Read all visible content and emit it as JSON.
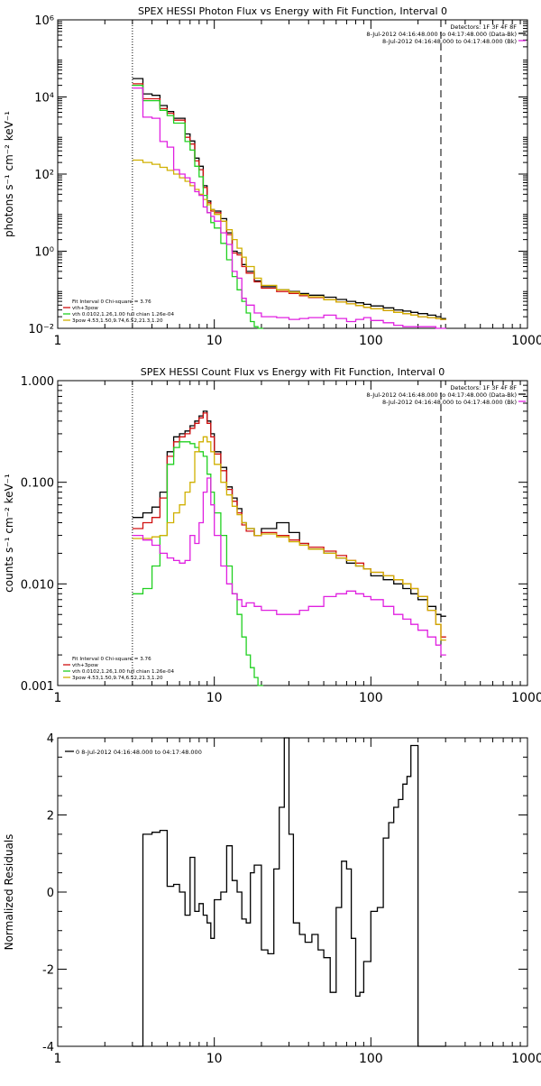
{
  "colors": {
    "data": "#000000",
    "total": "#d01010",
    "thermal": "#20d020",
    "powerlaw": "#d0b000",
    "background": "#e020e0",
    "fitrange": "#ff8c00"
  },
  "chart_data": [
    {
      "type": "line",
      "title": "SPEX HESSI Photon Flux vs Energy with Fit Function, Interval 0",
      "xlabel": "",
      "ylabel": "photons s⁻¹ cm⁻² keV⁻¹",
      "xscale": "log",
      "yscale": "log",
      "xlim": [
        1,
        1000
      ],
      "ylim": [
        0.01,
        1000000
      ],
      "xticks": [
        1,
        10,
        100,
        1000
      ],
      "xtick_labels": [
        "1",
        "10",
        "100",
        "1000"
      ],
      "yticks": [
        0.01,
        1,
        100,
        10000,
        1000000
      ],
      "ytick_labels": [
        "10⁻²",
        "10⁰",
        "10²",
        "10⁴",
        "10⁶"
      ],
      "legend_top": [
        "Detectors: 1F 3F 4F 8F",
        "8-Jul-2012 04:16:48.000 to 04:17:48.000 (Data-Bk)",
        "8-Jul-2012 04:16:48.000 to 04:17:48.000 (Bk)"
      ],
      "legend_fit": [
        "Fit Interval 0   Chi-square = 3.76",
        "vth+3pow",
        "vth 0.0102,1.26,1.00  full chian 1.26e-04",
        "3pow 4.53,1.50,9.74,6.52,21.3,1.20"
      ],
      "vlines": [
        3,
        280
      ],
      "series": [
        {
          "name": "Data-Bk",
          "x": [
            3,
            3.5,
            4,
            4.5,
            5,
            5.5,
            6,
            6.5,
            7,
            7.5,
            8,
            8.5,
            9,
            9.5,
            10,
            11,
            12,
            13,
            14,
            15,
            16,
            18,
            20,
            25,
            30,
            35,
            40,
            50,
            60,
            70,
            80,
            90,
            100,
            120,
            140,
            160,
            180,
            200,
            230,
            260,
            280
          ],
          "y": [
            30000,
            12000,
            11000,
            6000,
            4200,
            2800,
            2800,
            1100,
            720,
            260,
            160,
            50,
            20,
            12,
            11,
            7,
            3,
            1,
            0.9,
            0.45,
            0.3,
            0.17,
            0.12,
            0.1,
            0.09,
            0.08,
            0.072,
            0.064,
            0.056,
            0.05,
            0.046,
            0.042,
            0.038,
            0.034,
            0.03,
            0.028,
            0.026,
            0.024,
            0.022,
            0.02,
            0.018
          ]
        },
        {
          "name": "vth+3pow",
          "x": [
            3,
            3.5,
            4,
            4.5,
            5,
            5.5,
            6,
            6.5,
            7,
            7.5,
            8,
            8.5,
            9,
            9.5,
            10,
            11,
            12,
            13,
            14,
            15,
            16,
            18,
            20,
            25,
            30,
            35,
            40,
            50,
            60,
            70,
            80,
            90,
            100,
            120,
            140,
            160,
            180,
            200,
            230,
            260,
            280
          ],
          "y": [
            22000,
            9000,
            9000,
            5000,
            3800,
            2500,
            2500,
            900,
            600,
            220,
            130,
            45,
            18,
            11,
            10,
            6,
            2.7,
            0.9,
            0.8,
            0.4,
            0.27,
            0.16,
            0.11,
            0.09,
            0.08,
            0.07,
            0.063,
            0.055,
            0.048,
            0.043,
            0.039,
            0.035,
            0.032,
            0.029,
            0.026,
            0.024,
            0.022,
            0.02,
            0.019,
            0.018,
            0.017
          ]
        },
        {
          "name": "vth",
          "x": [
            3,
            3.5,
            4,
            4.5,
            5,
            5.5,
            6,
            6.5,
            7,
            7.5,
            8,
            8.5,
            9,
            9.5,
            10,
            11,
            12,
            13,
            14,
            15,
            16,
            17,
            18,
            19
          ],
          "y": [
            20000,
            8000,
            8000,
            4500,
            3300,
            2100,
            2100,
            700,
            420,
            160,
            85,
            28,
            10,
            5.5,
            4,
            1.6,
            0.6,
            0.22,
            0.1,
            0.05,
            0.025,
            0.015,
            0.011,
            0.01
          ]
        },
        {
          "name": "3pow",
          "x": [
            3,
            3.5,
            4,
            4.5,
            5,
            5.5,
            6,
            6.5,
            7,
            7.5,
            8,
            8.5,
            9,
            9.5,
            10,
            11,
            12,
            13,
            14,
            15,
            16,
            18,
            20,
            25,
            30,
            35,
            40,
            50,
            60,
            70,
            80,
            90,
            100,
            120,
            140,
            160,
            180,
            200,
            230,
            260,
            280
          ],
          "y": [
            230,
            200,
            180,
            150,
            125,
            100,
            80,
            65,
            50,
            40,
            30,
            22,
            16,
            12,
            9,
            6,
            3.6,
            2,
            1.2,
            0.7,
            0.4,
            0.2,
            0.13,
            0.1,
            0.087,
            0.075,
            0.065,
            0.055,
            0.048,
            0.043,
            0.039,
            0.035,
            0.032,
            0.029,
            0.026,
            0.024,
            0.022,
            0.02,
            0.019,
            0.018,
            0.017
          ]
        },
        {
          "name": "Bk",
          "x": [
            3,
            3.5,
            4,
            4.5,
            5,
            5.5,
            6,
            6.5,
            7,
            7.5,
            8,
            8.5,
            9,
            9.5,
            10,
            11,
            12,
            13,
            14,
            15,
            16,
            18,
            20,
            25,
            30,
            35,
            40,
            50,
            60,
            70,
            80,
            90,
            100,
            120,
            140,
            160,
            180,
            200,
            230,
            260,
            280
          ],
          "y": [
            17000,
            3000,
            2800,
            700,
            500,
            130,
            100,
            80,
            60,
            35,
            28,
            14,
            10,
            8,
            6,
            3,
            1.5,
            0.3,
            0.2,
            0.06,
            0.04,
            0.025,
            0.02,
            0.019,
            0.017,
            0.018,
            0.019,
            0.022,
            0.018,
            0.015,
            0.017,
            0.019,
            0.016,
            0.014,
            0.012,
            0.011,
            0.011,
            0.011,
            0.011,
            0.01,
            0.01
          ]
        }
      ]
    },
    {
      "type": "line",
      "title": "SPEX HESSI Count Flux vs Energy with Fit Function, Interval 0",
      "xlabel": "",
      "ylabel": "counts s⁻¹ cm⁻² keV⁻¹",
      "xscale": "log",
      "yscale": "log",
      "xlim": [
        1,
        1000
      ],
      "ylim": [
        0.001,
        1
      ],
      "xticks": [
        1,
        10,
        100,
        1000
      ],
      "xtick_labels": [
        "1",
        "10",
        "100",
        "1000"
      ],
      "yticks": [
        0.001,
        0.01,
        0.1,
        1
      ],
      "ytick_labels": [
        "0.001",
        "0.010",
        "0.100",
        "1.000"
      ],
      "legend_top": [
        "Detectors: 1F 3F 4F 8F",
        "8-Jul-2012 04:16:48.000 to 04:17:48.000 (Data-Bk)",
        "8-Jul-2012 04:16:48.000 to 04:17:48.000 (Bk)"
      ],
      "legend_fit": [
        "Fit Interval 0   Chi-square = 3.76",
        "vth+3pow",
        "vth 0.0102,1.26,1.00  full chian 1.26e-04",
        "3pow 4.53,1.50,9.74,6.52,21.3,1.20"
      ],
      "vlines": [
        3,
        280
      ],
      "series": [
        {
          "name": "Data-Bk",
          "x": [
            3,
            3.5,
            4,
            4.5,
            5,
            5.5,
            6,
            6.5,
            7,
            7.5,
            8,
            8.5,
            9,
            9.5,
            10,
            11,
            12,
            13,
            14,
            15,
            16,
            18,
            20,
            25,
            30,
            35,
            40,
            50,
            60,
            70,
            80,
            90,
            100,
            120,
            140,
            160,
            180,
            200,
            230,
            260,
            280
          ],
          "y": [
            0.045,
            0.05,
            0.057,
            0.08,
            0.2,
            0.28,
            0.3,
            0.32,
            0.36,
            0.4,
            0.45,
            0.5,
            0.4,
            0.3,
            0.2,
            0.14,
            0.09,
            0.07,
            0.055,
            0.04,
            0.035,
            0.03,
            0.035,
            0.04,
            0.032,
            0.025,
            0.022,
            0.02,
            0.018,
            0.016,
            0.015,
            0.014,
            0.012,
            0.011,
            0.01,
            0.009,
            0.008,
            0.007,
            0.006,
            0.005,
            0.0048
          ]
        },
        {
          "name": "vth+3pow",
          "x": [
            3,
            3.5,
            4,
            4.5,
            5,
            5.5,
            6,
            6.5,
            7,
            7.5,
            8,
            8.5,
            9,
            9.5,
            10,
            11,
            12,
            13,
            14,
            15,
            16,
            18,
            20,
            25,
            30,
            35,
            40,
            50,
            60,
            70,
            80,
            90,
            100,
            120,
            140,
            160,
            180,
            200,
            230,
            260,
            280
          ],
          "y": [
            0.035,
            0.04,
            0.045,
            0.07,
            0.18,
            0.25,
            0.28,
            0.3,
            0.34,
            0.38,
            0.43,
            0.48,
            0.38,
            0.28,
            0.19,
            0.13,
            0.085,
            0.065,
            0.05,
            0.038,
            0.033,
            0.03,
            0.032,
            0.03,
            0.027,
            0.025,
            0.023,
            0.021,
            0.019,
            0.017,
            0.016,
            0.014,
            0.013,
            0.012,
            0.011,
            0.01,
            0.009,
            0.0075,
            0.0055,
            0.004,
            0.003
          ]
        },
        {
          "name": "vth",
          "x": [
            3,
            3.5,
            4,
            4.5,
            5,
            5.5,
            6,
            6.5,
            7,
            7.5,
            8,
            8.5,
            9,
            9.5,
            10,
            11,
            12,
            13,
            14,
            15,
            16,
            17,
            18,
            19
          ],
          "y": [
            0.008,
            0.009,
            0.015,
            0.03,
            0.15,
            0.22,
            0.25,
            0.25,
            0.24,
            0.22,
            0.2,
            0.18,
            0.12,
            0.08,
            0.05,
            0.03,
            0.015,
            0.008,
            0.005,
            0.003,
            0.002,
            0.0015,
            0.0012,
            0.001
          ]
        },
        {
          "name": "3pow",
          "x": [
            3,
            3.5,
            4,
            4.5,
            5,
            5.5,
            6,
            6.5,
            7,
            7.5,
            8,
            8.5,
            9,
            9.5,
            10,
            11,
            12,
            13,
            14,
            15,
            16,
            18,
            20,
            25,
            30,
            35,
            40,
            50,
            60,
            70,
            80,
            90,
            100,
            120,
            140,
            160,
            180,
            200,
            230,
            260,
            280
          ],
          "y": [
            0.028,
            0.028,
            0.029,
            0.03,
            0.04,
            0.05,
            0.06,
            0.08,
            0.1,
            0.2,
            0.25,
            0.28,
            0.25,
            0.2,
            0.15,
            0.1,
            0.075,
            0.058,
            0.048,
            0.04,
            0.035,
            0.03,
            0.031,
            0.029,
            0.026,
            0.024,
            0.022,
            0.02,
            0.018,
            0.017,
            0.015,
            0.014,
            0.013,
            0.012,
            0.011,
            0.01,
            0.009,
            0.0075,
            0.0055,
            0.004,
            0.0028
          ]
        },
        {
          "name": "Bk",
          "x": [
            3,
            3.5,
            4,
            4.5,
            5,
            5.5,
            6,
            6.5,
            7,
            7.5,
            8,
            8.5,
            9,
            9.5,
            10,
            11,
            12,
            13,
            14,
            15,
            16,
            18,
            20,
            25,
            30,
            35,
            40,
            50,
            60,
            70,
            80,
            90,
            100,
            120,
            140,
            160,
            180,
            200,
            230,
            260,
            280
          ],
          "y": [
            0.03,
            0.027,
            0.024,
            0.02,
            0.018,
            0.017,
            0.016,
            0.017,
            0.03,
            0.025,
            0.04,
            0.08,
            0.11,
            0.06,
            0.03,
            0.015,
            0.01,
            0.008,
            0.007,
            0.006,
            0.0065,
            0.006,
            0.0055,
            0.005,
            0.005,
            0.0055,
            0.006,
            0.0075,
            0.008,
            0.0085,
            0.008,
            0.0075,
            0.007,
            0.006,
            0.005,
            0.0045,
            0.004,
            0.0035,
            0.003,
            0.0025,
            0.002
          ]
        }
      ]
    },
    {
      "type": "line",
      "title": "",
      "xlabel": "",
      "ylabel": "Normalized Residuals",
      "xscale": "log",
      "yscale": "linear",
      "xlim": [
        1,
        1000
      ],
      "ylim": [
        -4,
        4
      ],
      "xticks": [
        1,
        10,
        100,
        1000
      ],
      "xtick_labels": [
        "1",
        "10",
        "100",
        "1000"
      ],
      "yticks": [
        -4,
        -2,
        0,
        2,
        4
      ],
      "ytick_labels": [
        "-4",
        "-2",
        "0",
        "2",
        "4"
      ],
      "legend": "0  8-Jul-2012 04:16:48.000 to 04:17:48.000",
      "series": [
        {
          "name": "0  8-Jul-2012 04:16:48.000 to 04:17:48.000",
          "x": [
            3,
            3.5,
            4,
            4.5,
            5,
            5.5,
            6,
            6.5,
            7,
            7.5,
            8,
            8.5,
            9,
            9.5,
            10,
            11,
            12,
            13,
            14,
            15,
            16,
            17,
            18,
            20,
            22,
            24,
            26,
            28,
            30,
            32,
            35,
            38,
            42,
            46,
            50,
            55,
            60,
            65,
            70,
            75,
            80,
            85,
            90,
            100,
            110,
            120,
            130,
            140,
            150,
            160,
            170,
            180,
            200,
            220,
            240,
            260,
            280
          ],
          "y": [
            -4,
            1.5,
            1.55,
            1.6,
            0.15,
            0.2,
            0.0,
            -0.6,
            0.9,
            -0.5,
            -0.3,
            -0.6,
            -0.8,
            -1.2,
            -0.2,
            0.0,
            1.2,
            0.3,
            0.0,
            -0.7,
            -0.8,
            0.5,
            0.7,
            -1.5,
            -1.6,
            0.6,
            2.2,
            4.0,
            1.5,
            -0.8,
            -1.1,
            -1.3,
            -1.1,
            -1.5,
            -1.7,
            -2.6,
            -0.4,
            0.8,
            0.6,
            -1.2,
            -2.7,
            -2.6,
            -1.8,
            -0.5,
            -0.4,
            1.4,
            1.8,
            2.2,
            2.4,
            2.8,
            3.0,
            3.8,
            -4,
            -4,
            -4,
            -4,
            -4
          ]
        }
      ]
    }
  ]
}
